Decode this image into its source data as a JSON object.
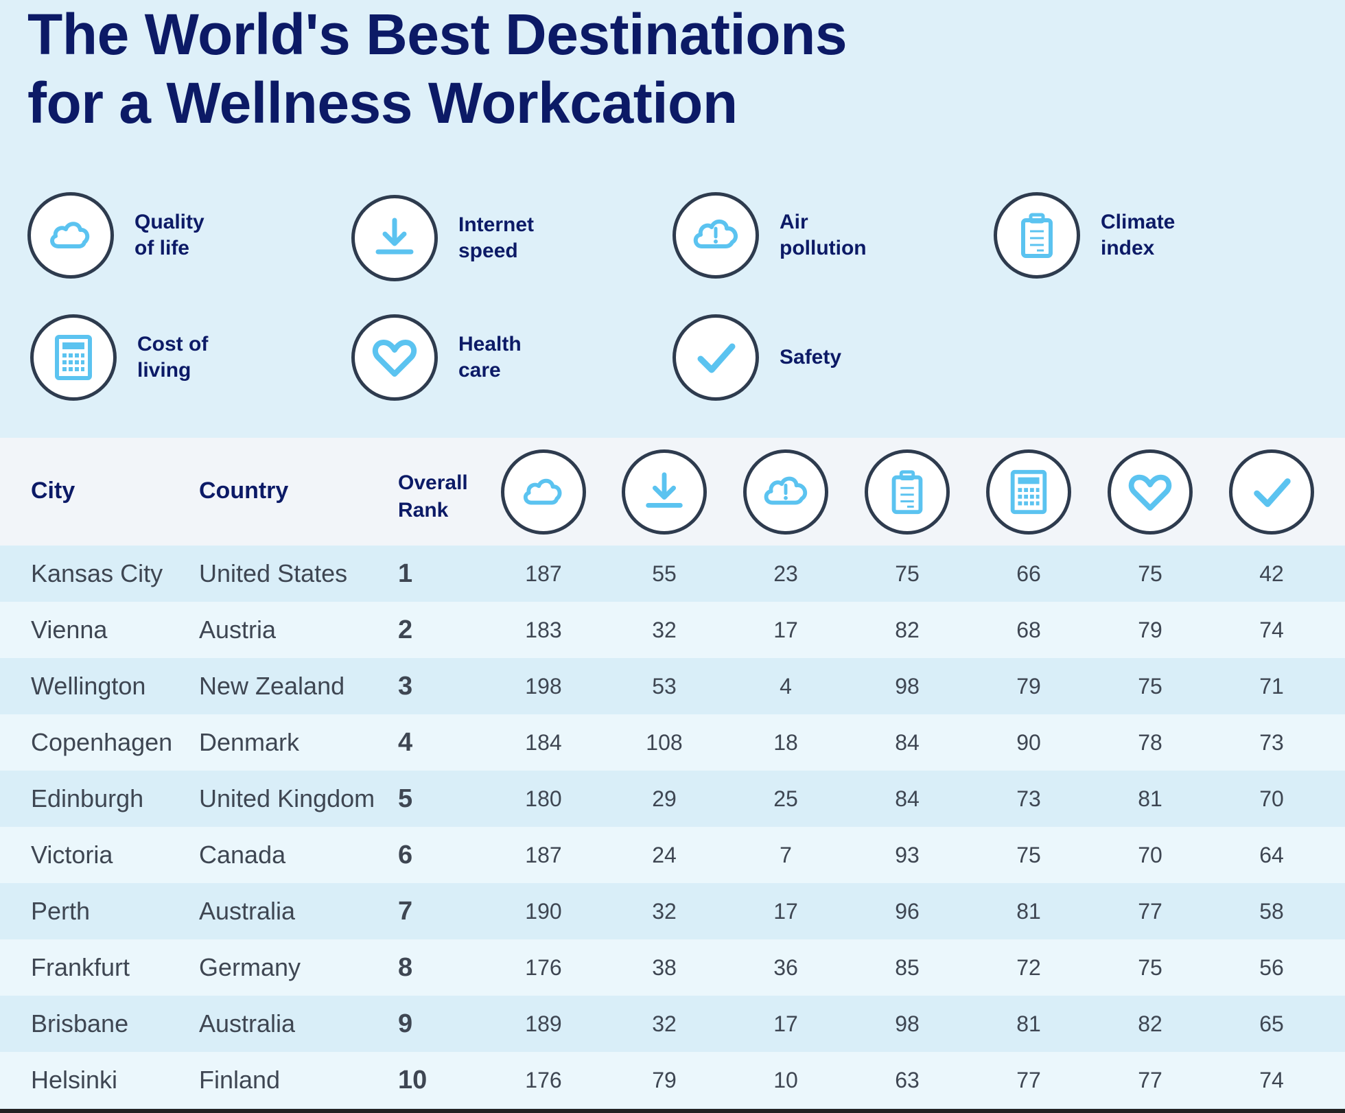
{
  "title": {
    "line1": "The World's Best Destinations",
    "line2": "for a Wellness Workcation"
  },
  "colors": {
    "navy": "#0c1a66",
    "icon_blue": "#5bc3f0",
    "icon_ring": "#2e3b4e",
    "background": "#def0f9"
  },
  "legend": [
    {
      "icon": "cloud-icon",
      "label": "Quality\nof life"
    },
    {
      "icon": "download-icon",
      "label": "Internet\nspeed"
    },
    {
      "icon": "cloud-alert-icon",
      "label": "Air\npollution"
    },
    {
      "icon": "clipboard-icon",
      "label": "Climate\nindex"
    },
    {
      "icon": "calculator-icon",
      "label": "Cost of\nliving"
    },
    {
      "icon": "heart-icon",
      "label": "Health\ncare"
    },
    {
      "icon": "checkmark-icon",
      "label": "Safety"
    }
  ],
  "table": {
    "headers": {
      "city": "City",
      "country": "Country",
      "rank_line1": "Overall",
      "rank_line2": "Rank"
    },
    "metric_icons": [
      "cloud-icon",
      "download-icon",
      "cloud-alert-icon",
      "clipboard-icon",
      "calculator-icon",
      "heart-icon",
      "checkmark-icon"
    ],
    "rows": [
      {
        "city": "Kansas City",
        "country": "United States",
        "rank": "1",
        "values": [
          "187",
          "55",
          "23",
          "75",
          "66",
          "75",
          "42"
        ]
      },
      {
        "city": "Vienna",
        "country": "Austria",
        "rank": "2",
        "values": [
          "183",
          "32",
          "17",
          "82",
          "68",
          "79",
          "74"
        ]
      },
      {
        "city": "Wellington",
        "country": "New Zealand",
        "rank": "3",
        "values": [
          "198",
          "53",
          "4",
          "98",
          "79",
          "75",
          "71"
        ]
      },
      {
        "city": "Copenhagen",
        "country": "Denmark",
        "rank": "4",
        "values": [
          "184",
          "108",
          "18",
          "84",
          "90",
          "78",
          "73"
        ]
      },
      {
        "city": "Edinburgh",
        "country": "United Kingdom",
        "rank": "5",
        "values": [
          "180",
          "29",
          "25",
          "84",
          "73",
          "81",
          "70"
        ]
      },
      {
        "city": "Victoria",
        "country": "Canada",
        "rank": "6",
        "values": [
          "187",
          "24",
          "7",
          "93",
          "75",
          "70",
          "64"
        ]
      },
      {
        "city": "Perth",
        "country": "Australia",
        "rank": "7",
        "values": [
          "190",
          "32",
          "17",
          "96",
          "81",
          "77",
          "58"
        ]
      },
      {
        "city": "Frankfurt",
        "country": "Germany",
        "rank": "8",
        "values": [
          "176",
          "38",
          "36",
          "85",
          "72",
          "75",
          "56"
        ]
      },
      {
        "city": "Brisbane",
        "country": "Australia",
        "rank": "9",
        "values": [
          "189",
          "32",
          "17",
          "98",
          "81",
          "82",
          "65"
        ]
      },
      {
        "city": "Helsinki",
        "country": "Finland",
        "rank": "10",
        "values": [
          "176",
          "79",
          "10",
          "63",
          "77",
          "77",
          "74"
        ]
      }
    ]
  }
}
